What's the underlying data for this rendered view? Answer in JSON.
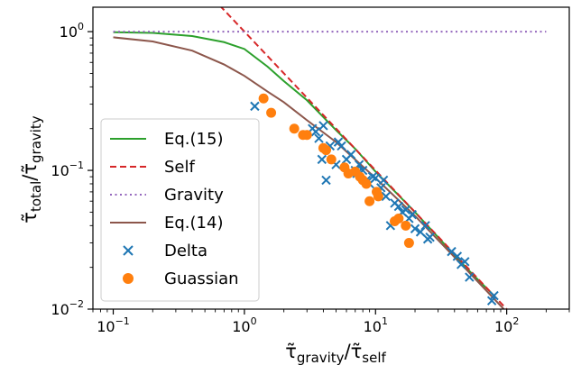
{
  "chart_data": {
    "type": "line",
    "xscale": "log",
    "yscale": "log",
    "xlim": [
      0.07,
      300
    ],
    "ylim": [
      0.01,
      1.5
    ],
    "grid": false,
    "legend_position": "lower-left",
    "xlabel": {
      "main": "τ̃",
      "sub1": "gravity",
      "mid": "/τ̃",
      "sub2": "self"
    },
    "ylabel": {
      "main": "τ̃",
      "sub1": "total",
      "mid": "/τ̃",
      "sub2": "gravity"
    },
    "xticks": [
      {
        "value": 0.1,
        "base": "10",
        "exp": "−1"
      },
      {
        "value": 1,
        "base": "10",
        "exp": "0"
      },
      {
        "value": 10,
        "base": "10",
        "exp": "1"
      },
      {
        "value": 100,
        "base": "10",
        "exp": "2"
      }
    ],
    "yticks": [
      {
        "value": 0.01,
        "base": "10",
        "exp": "−2"
      },
      {
        "value": 0.1,
        "base": "10",
        "exp": "−1"
      },
      {
        "value": 1,
        "base": "10",
        "exp": "0"
      }
    ],
    "series": [
      {
        "name": "Eq.(15)",
        "kind": "line",
        "color": "#2ca02c",
        "dash": "solid",
        "x": [
          0.1,
          0.2,
          0.4,
          0.7,
          1.0,
          1.5,
          2.0,
          3.0,
          5.0,
          7.0,
          10,
          20,
          50,
          80
        ],
        "y": [
          0.99,
          0.98,
          0.93,
          0.84,
          0.75,
          0.56,
          0.44,
          0.32,
          0.195,
          0.143,
          0.098,
          0.05,
          0.0195,
          0.0125
        ]
      },
      {
        "name": "Self",
        "kind": "line",
        "color": "#d62728",
        "dash": "dashed",
        "x": [
          0.65,
          100
        ],
        "y": [
          1.54,
          0.01
        ]
      },
      {
        "name": "Gravity",
        "kind": "line",
        "color": "#9467bd",
        "dash": "dotted",
        "x": [
          0.1,
          200
        ],
        "y": [
          1.0,
          1.0
        ]
      },
      {
        "name": "Eq.(14)",
        "kind": "line",
        "color": "#8c564b",
        "dash": "solid",
        "x": [
          0.1,
          0.2,
          0.4,
          0.7,
          1.0,
          1.5,
          2.0,
          3.0,
          5.0,
          10,
          20,
          50,
          100
        ],
        "y": [
          0.91,
          0.85,
          0.73,
          0.58,
          0.48,
          0.37,
          0.31,
          0.23,
          0.16,
          0.088,
          0.047,
          0.019,
          0.0095
        ]
      },
      {
        "name": "Delta",
        "kind": "scatter",
        "marker": "x",
        "color": "#1f77b4",
        "x": [
          1.2,
          3.3,
          3.5,
          3.7,
          3.9,
          4.0,
          4.2,
          4.5,
          5.0,
          5.2,
          5.5,
          6.0,
          6.5,
          7.0,
          7.2,
          7.5,
          8.0,
          8.5,
          9.0,
          9.5,
          10,
          10.5,
          11,
          11.5,
          12,
          13,
          14,
          15,
          16,
          17,
          18,
          19,
          20,
          22,
          24,
          25,
          26,
          38,
          42,
          45,
          48,
          52,
          77,
          80
        ],
        "y": [
          0.29,
          0.2,
          0.19,
          0.17,
          0.12,
          0.21,
          0.085,
          0.15,
          0.11,
          0.16,
          0.15,
          0.12,
          0.13,
          0.1,
          0.095,
          0.11,
          0.1,
          0.085,
          0.08,
          0.09,
          0.088,
          0.07,
          0.075,
          0.085,
          0.065,
          0.04,
          0.058,
          0.055,
          0.05,
          0.052,
          0.045,
          0.048,
          0.038,
          0.036,
          0.04,
          0.032,
          0.033,
          0.026,
          0.024,
          0.021,
          0.022,
          0.017,
          0.0115,
          0.0125
        ]
      },
      {
        "name": "Guassian",
        "kind": "scatter",
        "marker": "o",
        "color": "#ff7f0e",
        "x": [
          1.4,
          1.6,
          2.4,
          2.8,
          3.0,
          4.0,
          4.2,
          4.6,
          5.8,
          6.2,
          7.0,
          7.6,
          8.0,
          8.5,
          9.0,
          10.2,
          10.5,
          14.0,
          15.0,
          17.0,
          18.0
        ],
        "y": [
          0.33,
          0.26,
          0.2,
          0.18,
          0.18,
          0.145,
          0.14,
          0.12,
          0.105,
          0.095,
          0.098,
          0.09,
          0.085,
          0.08,
          0.06,
          0.07,
          0.065,
          0.043,
          0.045,
          0.04,
          0.03
        ]
      }
    ]
  }
}
